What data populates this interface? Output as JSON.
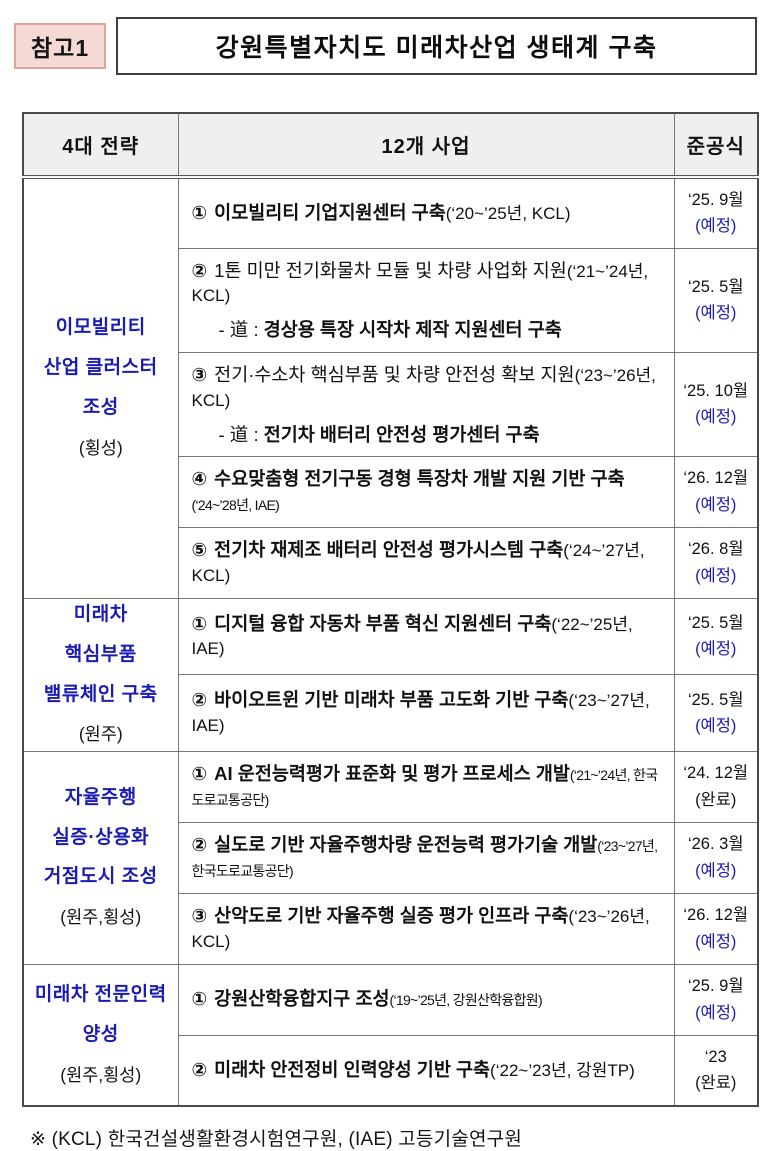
{
  "page": {
    "badge": "참고1",
    "title": "강원특별자치도 미래차산업 생태계 구축",
    "footnote": "※ (KCL) 한국건설생활환경시험연구원, (IAE) 고등기술연구원"
  },
  "colors": {
    "accent_blue": "#1b1bb4",
    "badge_bg": "#f5d9d4",
    "badge_border": "#dda49b",
    "header_bg": "#eef0ee"
  },
  "table": {
    "headers": [
      "4대 전략",
      "12개 사업",
      "준공식"
    ],
    "groups": [
      {
        "strategy_lines": [
          "이모빌리티",
          "산업 클러스터",
          "조성"
        ],
        "location": "(횡성)",
        "projects": [
          {
            "num": "①",
            "title": "이모빌리티 기업지원센터 구축",
            "paren": "(‘20~’25년, KCL)",
            "bold": true,
            "narrow": false,
            "date": "‘25. 9월",
            "status": "(예정)",
            "done": false
          },
          {
            "num": "②",
            "title": "1톤 미만 전기화물차 모듈 및 차량 사업화 지원",
            "paren": "(‘21~’24년, KCL)",
            "bold": false,
            "narrow": false,
            "sub_prefix": "- 道 : ",
            "sub": "경상용 특장 시작차 제작 지원센터 구축",
            "date": "‘25. 5월",
            "status": "(예정)",
            "done": false
          },
          {
            "num": "③",
            "title": "전기·수소차 핵심부품 및 차량 안전성 확보 지원",
            "paren": "(‘23~’26년, KCL)",
            "bold": false,
            "narrow": false,
            "sub_prefix": "- 道 : ",
            "sub": "전기차 배터리 안전성 평가센터 구축",
            "date": "‘25. 10월",
            "status": "(예정)",
            "done": false
          },
          {
            "num": "④",
            "title": "수요맞춤형 전기구동 경형 특장차 개발 지원 기반 구축",
            "paren": "(‘24~’28년, IAE)",
            "bold": true,
            "narrow": true,
            "date": "‘26. 12월",
            "status": "(예정)",
            "done": false
          },
          {
            "num": "⑤",
            "title": "전기차 재제조 배터리 안전성 평가시스템 구축",
            "paren": "(‘24~’27년, KCL)",
            "bold": true,
            "narrow": false,
            "date": "‘26. 8월",
            "status": "(예정)",
            "done": false
          }
        ]
      },
      {
        "strategy_lines": [
          "미래차",
          "핵심부품",
          "밸류체인 구축"
        ],
        "location": "(원주)",
        "projects": [
          {
            "num": "①",
            "title": "디지털 융합 자동차 부품 혁신 지원센터 구축",
            "paren": "(‘22~’25년, IAE)",
            "bold": true,
            "narrow": false,
            "date": "‘25. 5월",
            "status": "(예정)",
            "done": false
          },
          {
            "num": "②",
            "title": "바이오트윈 기반 미래차 부품 고도화 기반 구축",
            "paren": "(‘23~’27년,  IAE)",
            "bold": true,
            "narrow": false,
            "date": "‘25. 5월",
            "status": "(예정)",
            "done": false
          }
        ]
      },
      {
        "strategy_lines": [
          "자율주행",
          "실증·상용화",
          "거점도시 조성"
        ],
        "location": "(원주,횡성)",
        "projects": [
          {
            "num": "①",
            "title": "AI 운전능력평가 표준화 및 평가 프로세스 개발",
            "paren": "(‘21~’24년, 한국도로교통공단)",
            "bold": true,
            "narrow": true,
            "date": "‘24. 12월",
            "status": "(완료)",
            "done": true
          },
          {
            "num": "②",
            "title": "실도로 기반 자율주행차량 운전능력 평가기술 개발",
            "paren": "(‘23~’27년, 한국도로교통공단)",
            "bold": true,
            "narrow": true,
            "date": "‘26. 3월",
            "status": "(예정)",
            "done": false
          },
          {
            "num": "③",
            "title": "산악도로 기반 자율주행 실증 평가 인프라 구축",
            "paren": "(‘23~’26년, KCL)",
            "bold": true,
            "narrow": false,
            "date": "‘26. 12월",
            "status": "(예정)",
            "done": false
          }
        ]
      },
      {
        "strategy_lines": [
          "미래차 전문인력",
          "양성"
        ],
        "location": "(원주,횡성)",
        "projects": [
          {
            "num": "①",
            "title": "강원산학융합지구 조성",
            "paren": "(‘19~’25년, 강원산학융합원)",
            "bold": true,
            "narrow": true,
            "date": "‘25. 9월",
            "status": "(예정)",
            "done": false
          },
          {
            "num": "②",
            "title": "미래차 안전정비 인력양성 기반 구축",
            "paren": "(‘22~’23년, 강원TP)",
            "bold": true,
            "narrow": false,
            "date": "‘23",
            "status": "(완료)",
            "done": true
          }
        ]
      }
    ]
  }
}
